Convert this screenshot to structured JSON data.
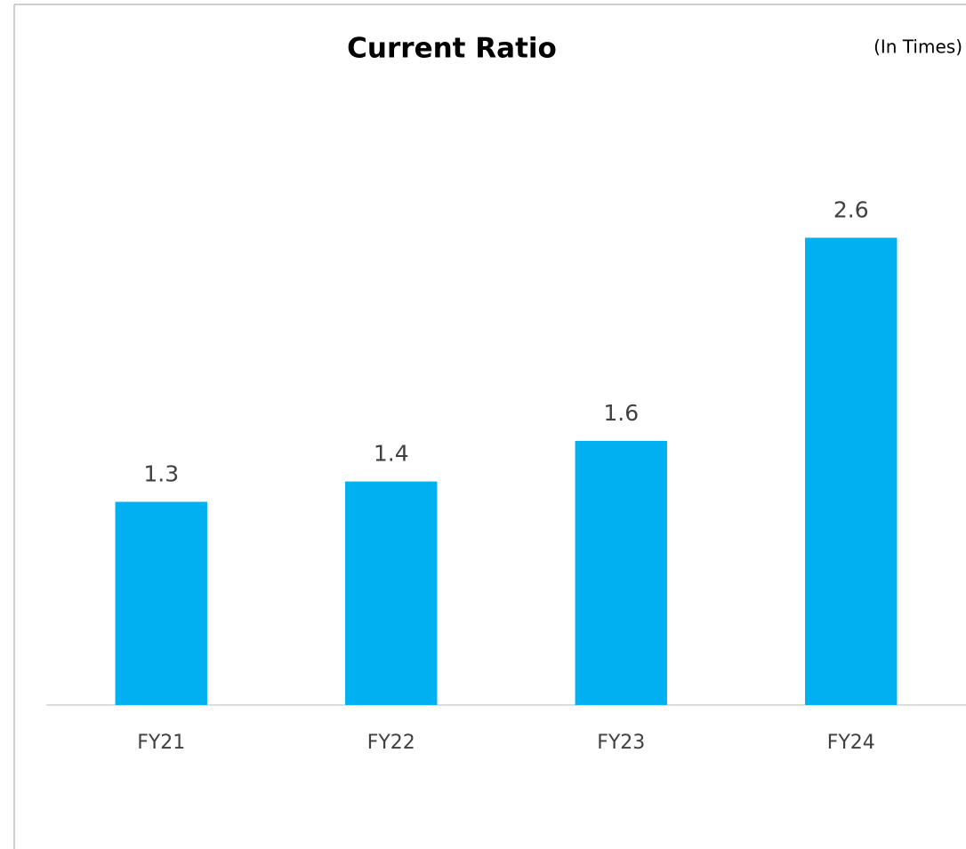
{
  "chart_data": {
    "type": "bar",
    "title": "Current Ratio",
    "subtitle": "(In Times)",
    "categories": [
      "FY21",
      "FY22",
      "FY23",
      "FY24"
    ],
    "values": [
      1.3,
      1.4,
      1.6,
      2.6
    ],
    "color": "#00b0f0",
    "ylim": [
      0.3,
      3.0
    ]
  }
}
